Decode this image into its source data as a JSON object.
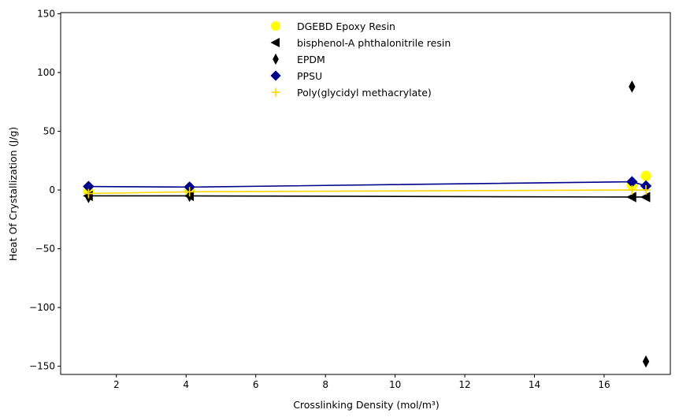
{
  "chart_data": {
    "type": "scatter",
    "title": "",
    "xlabel": "Crosslinking Density (mol/m³)",
    "ylabel": "Heat Of Crystallization (J/g)",
    "xlim": [
      0.4,
      17.9
    ],
    "ylim": [
      -157,
      151
    ],
    "xticks": [
      2,
      4,
      6,
      8,
      10,
      12,
      14,
      16
    ],
    "xtick_labels": [
      "2",
      "4",
      "6",
      "8",
      "10",
      "12",
      "14",
      "16"
    ],
    "yticks": [
      -150,
      -100,
      -50,
      0,
      50,
      100,
      150
    ],
    "ytick_labels": [
      "−150",
      "−100",
      "−50",
      "0",
      "50",
      "100",
      "150"
    ],
    "grid": false,
    "legend_position": "top-center",
    "series": [
      {
        "name": "DGEBD Epoxy Resin",
        "marker": "circle",
        "color": "#ffff00",
        "x": [
          1.2,
          4.1,
          16.8,
          17.2
        ],
        "y": [
          -1,
          -1,
          4,
          12
        ],
        "line": false
      },
      {
        "name": "bisphenol-A phthalonitrile resin",
        "marker": "triangle-left",
        "color": "#000000",
        "x": [
          1.2,
          4.1,
          16.8,
          17.2
        ],
        "y": [
          -5,
          -5,
          -6,
          -6
        ],
        "line": true
      },
      {
        "name": "EPDM",
        "marker": "thin-diamond",
        "color": "#000000",
        "x": [
          1.2,
          4.1,
          16.8,
          17.2
        ],
        "y": [
          -6,
          -5,
          88,
          -146
        ],
        "line": false
      },
      {
        "name": "PPSU",
        "marker": "diamond",
        "color": "#00008b",
        "x": [
          1.2,
          4.1,
          16.8,
          17.2
        ],
        "y": [
          3,
          2.5,
          7,
          3.5
        ],
        "line": true
      },
      {
        "name": "Poly(glycidyl methacrylate)",
        "marker": "plus",
        "color": "#ffd700",
        "x": [
          1.2,
          4.1,
          16.8,
          17.2
        ],
        "y": [
          -3,
          -1.5,
          0,
          0
        ],
        "line": true
      }
    ]
  }
}
